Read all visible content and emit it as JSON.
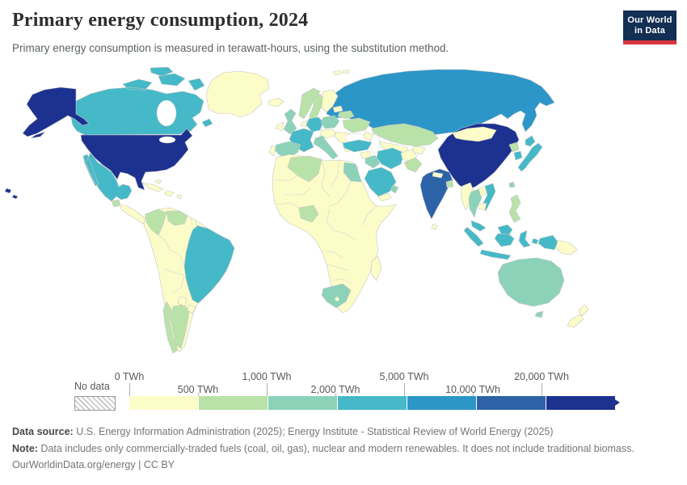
{
  "header": {
    "title": "Primary energy consumption, 2024",
    "subtitle": "Primary energy consumption is measured in terawatt-hours, using the substitution method.",
    "logo": {
      "line1": "Our World",
      "line2": "in Data",
      "bg_color": "#132f53",
      "accent_color": "#d9353d"
    }
  },
  "chart_data": {
    "type": "choropleth_map",
    "title": "Primary energy consumption, 2024",
    "unit": "TWh",
    "year": "2024",
    "legend": {
      "no_data_label": "No data",
      "tick_labels": [
        "0 TWh",
        "500 TWh",
        "1,000 TWh",
        "2,000 TWh",
        "5,000 TWh",
        "10,000 TWh",
        "20,000 TWh"
      ],
      "bin_colors": [
        "#fcfcc9",
        "#b9e2a9",
        "#8bd2b9",
        "#45b9c7",
        "#2d96c8",
        "#2c62a8",
        "#1c3190"
      ],
      "bin_ranges": [
        "0–500",
        "500–1,000",
        "1,000–2,000",
        "2,000–5,000",
        "5,000–10,000",
        "10,000–20,000",
        "20,000+"
      ]
    },
    "countries": {
      "United States": 6,
      "China": 6,
      "India": 5,
      "Russia": 4,
      "Canada": 3,
      "Mexico": 3,
      "Brazil": 3,
      "France": 3,
      "Germany": 3,
      "Turkey": 3,
      "Iran": 3,
      "Saudi Arabia": 3,
      "Japan": 3,
      "South Korea": 3,
      "Indonesia": 3,
      "Vietnam": 3,
      "Malaysia": 3,
      "United Kingdom": 2,
      "Spain": 2,
      "Italy": 2,
      "Poland": 2,
      "Egypt": 2,
      "Iraq": 2,
      "United Arab Emirates": 2,
      "Thailand": 2,
      "Taiwan": 2,
      "Australia": 2,
      "South Africa": 2,
      "Norway": 1,
      "Sweden": 1,
      "Ukraine": 1,
      "Belarus": 1,
      "Colombia": 1,
      "Venezuela": 1,
      "Argentina": 1,
      "Chile": 1,
      "Algeria": 1,
      "Nigeria": 1,
      "Kazakhstan": 1,
      "Pakistan": 1,
      "Philippines": 1,
      "Bangladesh": 1,
      "North Korea": 1,
      "Guatemala": 1,
      "Greenland": 0,
      "Iceland": 0,
      "Finland": 0,
      "Ireland": 0,
      "Portugal": 0,
      "Denmark": 0,
      "Netherlands": 0,
      "Baltic states": 0,
      "Central Europe": 0,
      "Balkans": 0,
      "Greece": 0,
      "Svalbard": 0,
      "Caucasus": 0,
      "Levant": 0,
      "Yemen": 0,
      "Afghanistan": 0,
      "Central Asia": 0,
      "Mongolia": 0,
      "Nepal": 0,
      "Sri Lanka": 0,
      "Myanmar": 0,
      "Laos": 0,
      "Cambodia": 0,
      "Papua New Guinea": 0,
      "New Zealand": 0,
      "Central America": 0,
      "Cuba": 0,
      "Hispaniola": 0,
      "Caribbean": 0,
      "South America (other)": 0,
      "Paraguay": 0,
      "Uruguay": 0,
      "Africa (other)": 0,
      "Madagascar": 0,
      "Lesotho": 0
    }
  },
  "footer": {
    "sources_label": "Data source:",
    "sources_text": " U.S. Energy Information Administration (2025); Energy Institute - Statistical Review of World Energy (2025)",
    "note_label": "Note:",
    "note_text": " Data includes only commercially-traded fuels (coal, oil, gas), nuclear and modern renewables. It does not include traditional biomass.",
    "citation": "OurWorldinData.org/energy | CC BY"
  }
}
